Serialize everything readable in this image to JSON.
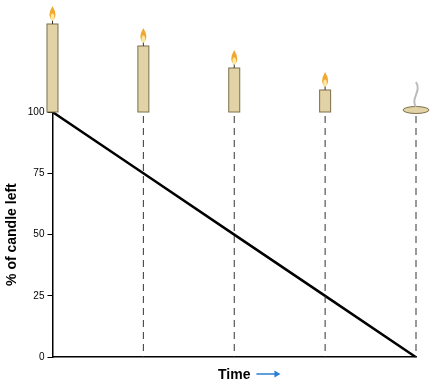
{
  "chart_data": {
    "type": "line",
    "y_label": "% of candle left",
    "x_label": "Time",
    "categories": [
      null,
      null,
      null,
      null,
      null
    ],
    "values": [
      100,
      75,
      50,
      25,
      0
    ],
    "color": "#000000",
    "ylim": [
      0,
      100
    ],
    "yticks": [
      0,
      25,
      50,
      75,
      100
    ],
    "grid": false,
    "tick_labels": "y",
    "line_style": "solid"
  }
}
